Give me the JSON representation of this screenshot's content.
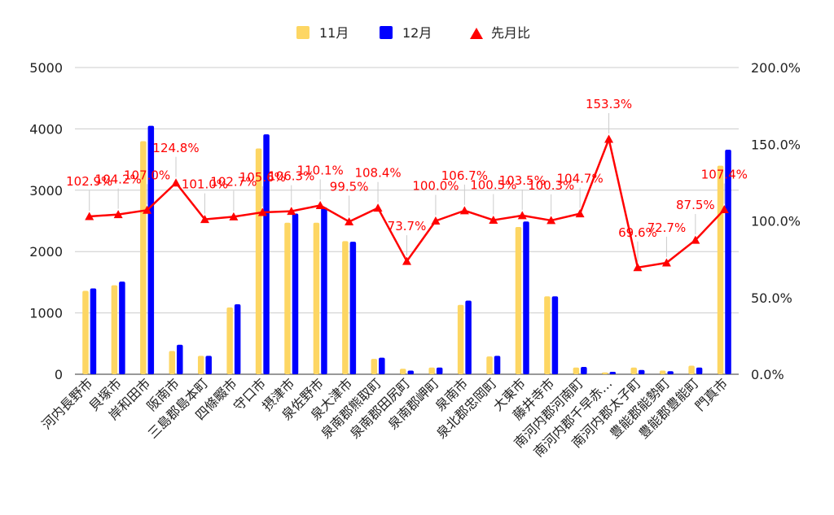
{
  "chart_data": {
    "type": "bar",
    "categories": [
      "河内長野市",
      "貝塚市",
      "岸和田市",
      "阪南市",
      "三島郡島本町",
      "四條畷市",
      "守口市",
      "摂津市",
      "泉佐野市",
      "泉大津市",
      "泉南郡熊取町",
      "泉南郡田尻町",
      "泉南郡岬町",
      "泉南市",
      "泉北郡忠岡町",
      "大東市",
      "藤井寺市",
      "南河内郡河南町",
      "南河内郡千早赤…",
      "南河内郡太子町",
      "豊能郡能勢町",
      "豊能郡豊能町",
      "門真市"
    ],
    "series": [
      {
        "name": "11月",
        "type": "bar",
        "color": "#fdd663",
        "axis": "left",
        "values": [
          1360,
          1450,
          3800,
          380,
          300,
          1090,
          3680,
          2470,
          2470,
          2170,
          250,
          90,
          110,
          1130,
          290,
          2400,
          1270,
          110,
          30,
          110,
          60,
          140,
          3400
        ]
      },
      {
        "name": "12月",
        "type": "bar",
        "color": "#0000ff",
        "axis": "left",
        "values": [
          1400,
          1510,
          4050,
          480,
          300,
          1140,
          3910,
          2620,
          2720,
          2160,
          270,
          60,
          110,
          1200,
          300,
          2490,
          1270,
          120,
          40,
          70,
          50,
          110,
          3660
        ]
      },
      {
        "name": "先月比",
        "type": "line",
        "color": "#ff0000",
        "axis": "right",
        "marker": "triangle",
        "values": [
          102.9,
          104.2,
          107.0,
          124.8,
          101.0,
          102.7,
          105.6,
          106.3,
          110.1,
          99.5,
          108.4,
          73.7,
          100.0,
          106.7,
          100.5,
          103.5,
          100.3,
          104.7,
          153.3,
          69.6,
          72.7,
          87.5,
          107.4
        ],
        "labels": [
          "102.9%",
          "104.2%",
          "107.0%",
          "124.8%",
          "101.0%",
          "102.7%",
          "105.6%",
          "106.3%",
          "110.1%",
          "99.5%",
          "108.4%",
          "73.7%",
          "100.0%",
          "106.7%",
          "100.5%",
          "103.5%",
          "100.3%",
          "104.7%",
          "153.3%",
          "69.6%",
          "72.7%",
          "87.5%",
          "107.4%"
        ]
      }
    ],
    "y_left": {
      "min": 0,
      "max": 5000,
      "ticks": [
        "0",
        "1000",
        "2000",
        "3000",
        "4000",
        "5000"
      ]
    },
    "y_right": {
      "min": 0,
      "max": 200,
      "ticks": [
        "0.0%",
        "50.0%",
        "100.0%",
        "150.0%",
        "200.0%"
      ]
    },
    "legend": {
      "position": "top",
      "items": [
        "11月",
        "12月",
        "先月比"
      ]
    },
    "grid": true
  }
}
